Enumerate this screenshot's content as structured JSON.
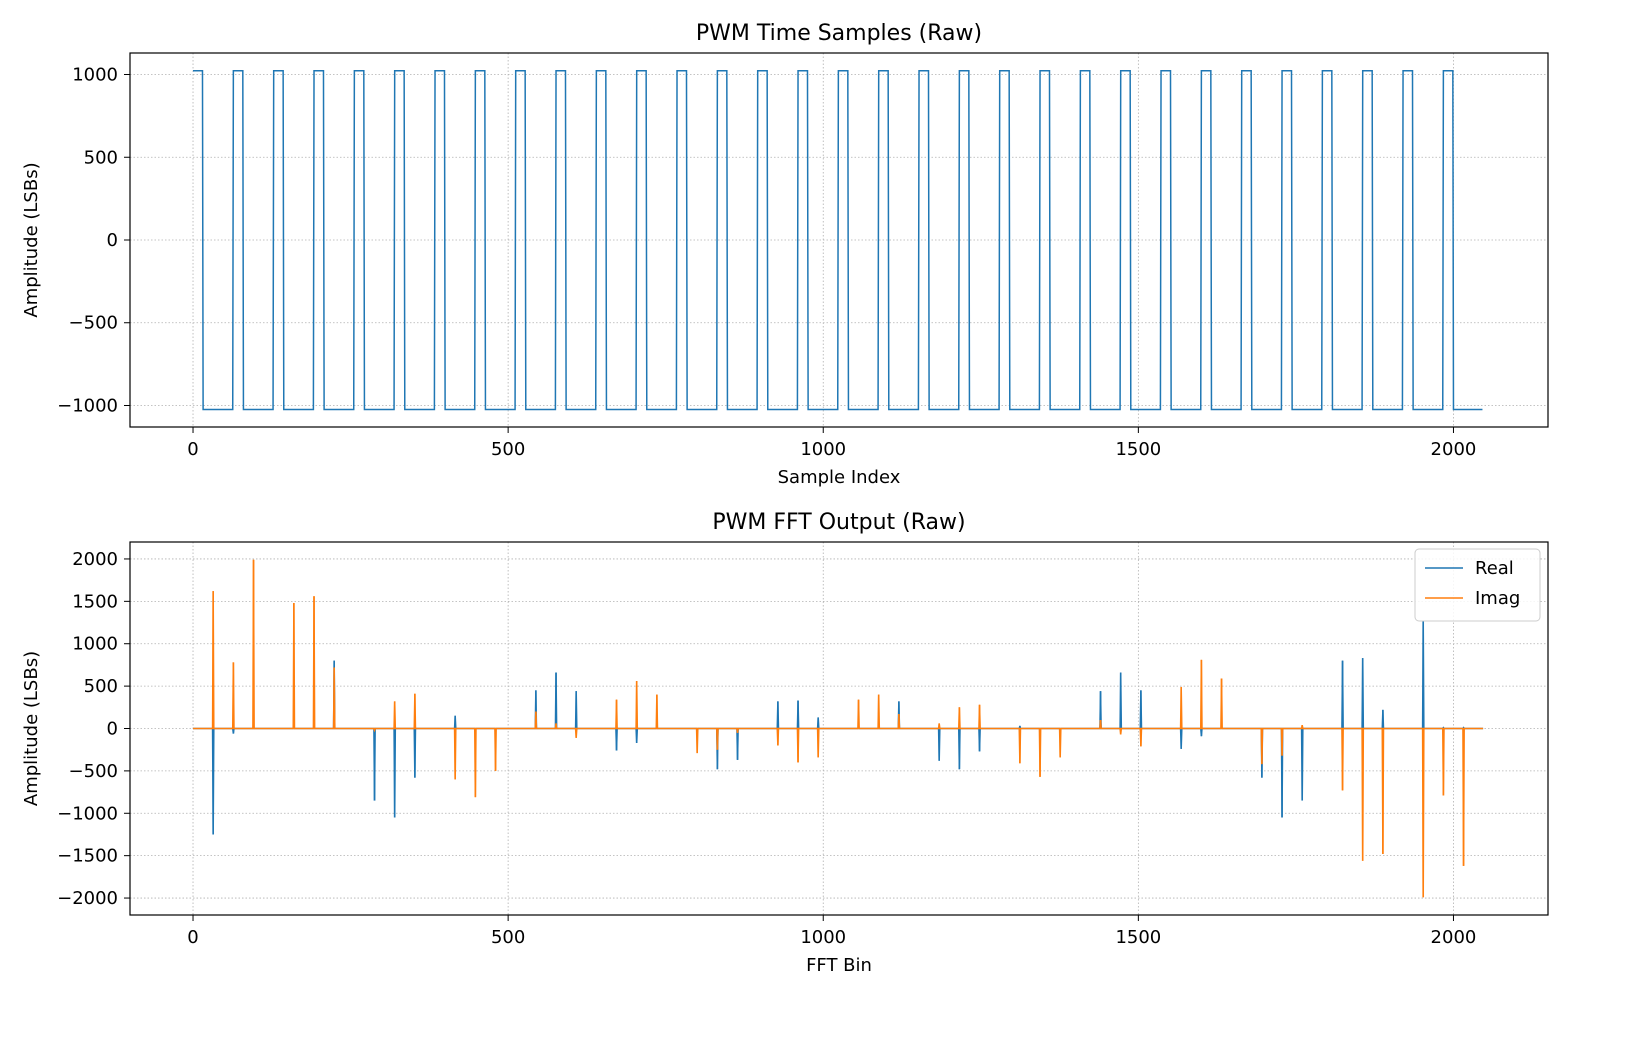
{
  "chart_data": [
    {
      "type": "line",
      "title": "PWM Time Samples (Raw)",
      "xlabel": "Sample Index",
      "ylabel": "Amplitude (LSBs)",
      "xlim": [
        -100,
        2150
      ],
      "ylim": [
        -1130,
        1130
      ],
      "xticks": [
        0,
        500,
        1000,
        1500,
        2000
      ],
      "xtick_labels": [
        "0",
        "500",
        "1000",
        "1500",
        "2000"
      ],
      "yticks": [
        1000,
        500,
        0,
        -500,
        -1000
      ],
      "ytick_labels": [
        "1000",
        "500",
        "0",
        "−500",
        "−1000"
      ],
      "grid": true,
      "signal": {
        "kind": "square_wave",
        "n_samples": 2048,
        "period": 64,
        "high_samples": 16,
        "high": 1023,
        "low": -1024
      },
      "series": [
        {
          "color": "#1f77b4"
        }
      ]
    },
    {
      "type": "line",
      "title": "PWM FFT Output (Raw)",
      "xlabel": "FFT Bin",
      "ylabel": "Amplitude (LSBs)",
      "xlim": [
        -100,
        2150
      ],
      "ylim": [
        -2200,
        2200
      ],
      "xticks": [
        0,
        500,
        1000,
        1500,
        2000
      ],
      "xtick_labels": [
        "0",
        "500",
        "1000",
        "1500",
        "2000"
      ],
      "yticks": [
        2000,
        1500,
        1000,
        500,
        0,
        -500,
        -1000,
        -1500,
        -2000
      ],
      "ytick_labels": [
        "2000",
        "1500",
        "1000",
        "500",
        "0",
        "−500",
        "−1000",
        "−1500",
        "−2000"
      ],
      "grid": true,
      "legend_position": "top-right",
      "n_bins": 2048,
      "series": [
        {
          "name": "Real",
          "color": "#1f77b4",
          "points": [
            [
              32,
              -1250
            ],
            [
              64,
              -60
            ],
            [
              96,
              20
            ],
            [
              160,
              10
            ],
            [
              192,
              10
            ],
            [
              224,
              800
            ],
            [
              288,
              -850
            ],
            [
              320,
              -1050
            ],
            [
              352,
              -580
            ],
            [
              416,
              150
            ],
            [
              448,
              -10
            ],
            [
              480,
              -10
            ],
            [
              544,
              450
            ],
            [
              576,
              660
            ],
            [
              608,
              440
            ],
            [
              672,
              -260
            ],
            [
              704,
              -170
            ],
            [
              736,
              10
            ],
            [
              800,
              -10
            ],
            [
              832,
              -480
            ],
            [
              864,
              -370
            ],
            [
              928,
              320
            ],
            [
              960,
              330
            ],
            [
              992,
              130
            ],
            [
              1056,
              10
            ],
            [
              1088,
              20
            ],
            [
              1120,
              320
            ],
            [
              1184,
              -380
            ],
            [
              1216,
              -480
            ],
            [
              1248,
              -270
            ],
            [
              1312,
              30
            ],
            [
              1344,
              -10
            ],
            [
              1376,
              -10
            ],
            [
              1440,
              440
            ],
            [
              1472,
              660
            ],
            [
              1504,
              450
            ],
            [
              1568,
              -240
            ],
            [
              1600,
              -90
            ],
            [
              1632,
              10
            ],
            [
              1696,
              -580
            ],
            [
              1728,
              -1050
            ],
            [
              1760,
              -850
            ],
            [
              1824,
              800
            ],
            [
              1856,
              830
            ],
            [
              1888,
              220
            ],
            [
              1952,
              1270
            ],
            [
              1984,
              10
            ],
            [
              2016,
              10
            ]
          ]
        },
        {
          "name": "Imag",
          "color": "#ff7f0e",
          "points": [
            [
              32,
              1620
            ],
            [
              64,
              780
            ],
            [
              96,
              1990
            ],
            [
              160,
              1480
            ],
            [
              192,
              1560
            ],
            [
              224,
              720
            ],
            [
              288,
              -20
            ],
            [
              320,
              320
            ],
            [
              352,
              410
            ],
            [
              416,
              -600
            ],
            [
              448,
              -810
            ],
            [
              480,
              -500
            ],
            [
              544,
              200
            ],
            [
              576,
              60
            ],
            [
              608,
              -110
            ],
            [
              672,
              340
            ],
            [
              704,
              560
            ],
            [
              736,
              400
            ],
            [
              800,
              -290
            ],
            [
              832,
              -250
            ],
            [
              864,
              -50
            ],
            [
              928,
              -200
            ],
            [
              960,
              -400
            ],
            [
              992,
              -340
            ],
            [
              1056,
              340
            ],
            [
              1088,
              400
            ],
            [
              1120,
              170
            ],
            [
              1184,
              60
            ],
            [
              1216,
              250
            ],
            [
              1248,
              280
            ],
            [
              1312,
              -410
            ],
            [
              1344,
              -570
            ],
            [
              1376,
              -340
            ],
            [
              1440,
              100
            ],
            [
              1472,
              -70
            ],
            [
              1504,
              -210
            ],
            [
              1568,
              490
            ],
            [
              1600,
              810
            ],
            [
              1632,
              590
            ],
            [
              1696,
              -420
            ],
            [
              1728,
              -320
            ],
            [
              1760,
              40
            ],
            [
              1824,
              -730
            ],
            [
              1856,
              -1560
            ],
            [
              1888,
              -1480
            ],
            [
              1952,
              -1990
            ],
            [
              1984,
              -790
            ],
            [
              2016,
              -1620
            ]
          ]
        }
      ]
    }
  ]
}
